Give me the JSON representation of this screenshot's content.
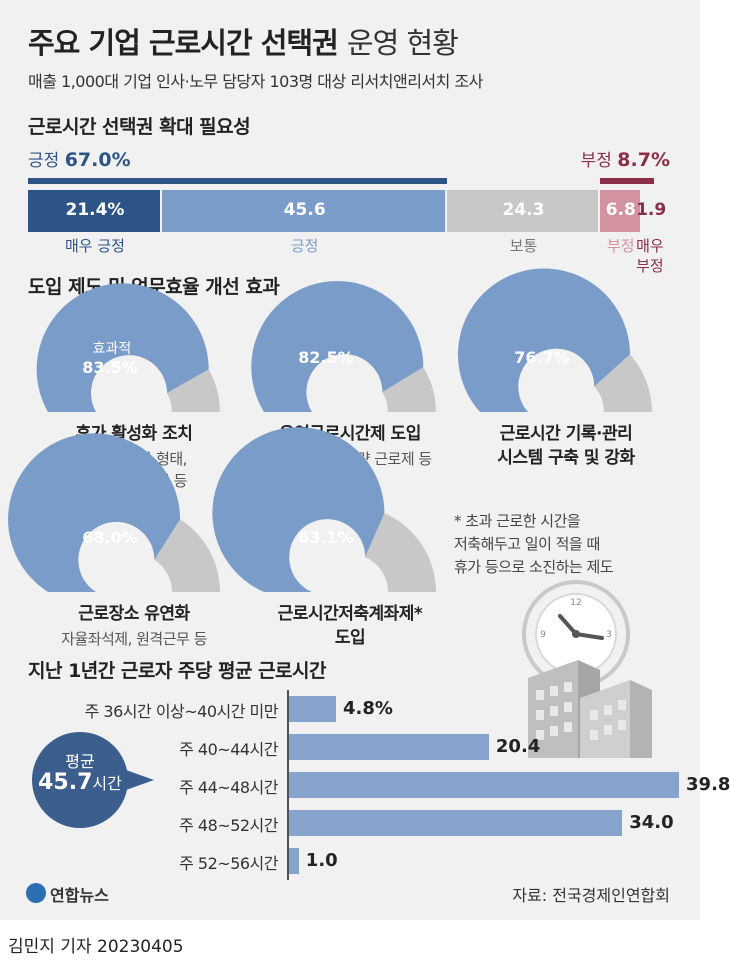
{
  "header": {
    "title_bold": "주요 기업 근로시간 선택권",
    "title_light": "운영 현황",
    "subtitle": "매출 1,000대 기업 인사·노무 담당자 103명 대상 리서치앤리서치 조사"
  },
  "colors": {
    "dark_blue": "#2c5585",
    "mid_blue": "#7a9cc8",
    "grey": "#c8c8c8",
    "light_red": "#d3929f",
    "dark_red": "#8b2f46",
    "bar_blue": "#86a4cb",
    "circle_blue": "#3b5e8c"
  },
  "chart_data": [
    {
      "type": "bar",
      "title": "근로시간 선택권 확대 필요성",
      "categories": [
        "매우 긍정",
        "긍정",
        "보통",
        "부정",
        "매우\n부정"
      ],
      "values": [
        21.4,
        45.6,
        24.3,
        6.8,
        1.9
      ],
      "value_labels": [
        "21.4%",
        "45.6",
        "24.3",
        "6.8",
        "1.9"
      ],
      "positive_total_label": "긍정",
      "positive_total": "67.0%",
      "negative_total_label": "부정",
      "negative_total": "8.7%"
    },
    {
      "type": "pie",
      "title": "도입 제도 및 업무효율 개선 효과",
      "gauge_prefix": "효과적",
      "items": [
        {
          "name": "휴가 활성화 조치",
          "desc": "다양한 휴가 형태,\n연차 사용 촉진 등",
          "value": 83.5,
          "label": "83.5%"
        },
        {
          "name": "유연근로시간제 도입",
          "desc": "탄력적 선택 재량 근로제 등",
          "value": 82.5,
          "label": "82.5%"
        },
        {
          "name": "근로시간 기록·관리\n시스템 구축 및 강화",
          "desc": "",
          "value": 76.7,
          "label": "76.7%"
        },
        {
          "name": "근로장소 유연화",
          "desc": "자율좌석제, 원격근무 등",
          "value": 68.0,
          "label": "68.0%"
        },
        {
          "name": "근로시간저축계좌제*\n도입",
          "desc": "",
          "value": 63.1,
          "label": "63.1%"
        }
      ],
      "footnote": "* 초과 근로한 시간을\n저축해두고 일이 적을 때\n휴가 등으로 소진하는 제도"
    },
    {
      "type": "bar",
      "title": "지난 1년간 근로자 주당 평균 근로시간",
      "orientation": "horizontal",
      "categories": [
        "주 36시간 이상~40시간 미만",
        "주 40~44시간",
        "주 44~48시간",
        "주 48~52시간",
        "주 52~56시간"
      ],
      "values": [
        4.8,
        20.4,
        39.8,
        34.0,
        1.0
      ],
      "value_labels": [
        "4.8%",
        "20.4",
        "39.8",
        "34.0",
        "1.0"
      ],
      "average_label": "평균",
      "average_value": "45.7",
      "average_unit": "시간"
    }
  ],
  "source": "자료: 전국경제인연합회",
  "logo_text": "연합뉴스",
  "byline": "김민지 기자  20230405"
}
